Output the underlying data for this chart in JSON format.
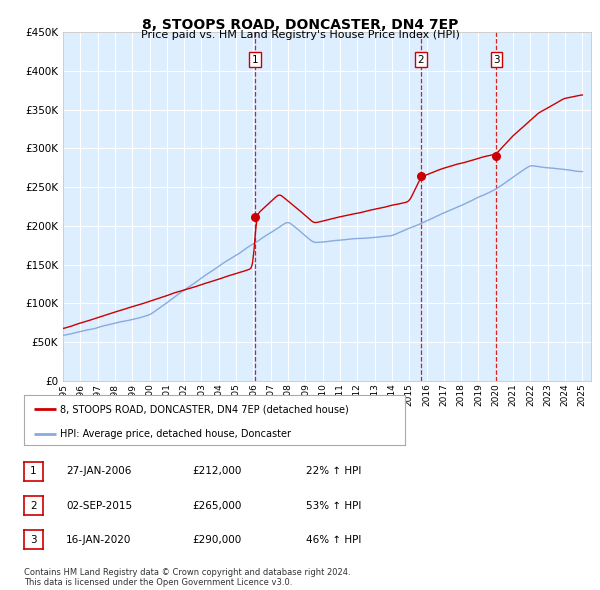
{
  "title": "8, STOOPS ROAD, DONCASTER, DN4 7EP",
  "subtitle": "Price paid vs. HM Land Registry's House Price Index (HPI)",
  "ylabel_ticks": [
    "£0",
    "£50K",
    "£100K",
    "£150K",
    "£200K",
    "£250K",
    "£300K",
    "£350K",
    "£400K",
    "£450K"
  ],
  "ylim": [
    0,
    450000
  ],
  "xlim_start": 1995.0,
  "xlim_end": 2025.5,
  "sale_dates": [
    2006.07,
    2015.67,
    2020.04
  ],
  "sale_prices": [
    212000,
    265000,
    290000
  ],
  "sale_labels": [
    "1",
    "2",
    "3"
  ],
  "legend_line1": "8, STOOPS ROAD, DONCASTER, DN4 7EP (detached house)",
  "legend_line2": "HPI: Average price, detached house, Doncaster",
  "table_entries": [
    [
      "1",
      "27-JAN-2006",
      "£212,000",
      "22% ↑ HPI"
    ],
    [
      "2",
      "02-SEP-2015",
      "£265,000",
      "53% ↑ HPI"
    ],
    [
      "3",
      "16-JAN-2020",
      "£290,000",
      "46% ↑ HPI"
    ]
  ],
  "footer": "Contains HM Land Registry data © Crown copyright and database right 2024.\nThis data is licensed under the Open Government Licence v3.0.",
  "line_color_red": "#cc0000",
  "line_color_blue": "#88aadd",
  "bg_color": "#ddeeff",
  "grid_color": "#ffffff",
  "sale_marker_color": "#cc0000",
  "vline_color": "#cc0000",
  "label_box_color": "#cc0000"
}
